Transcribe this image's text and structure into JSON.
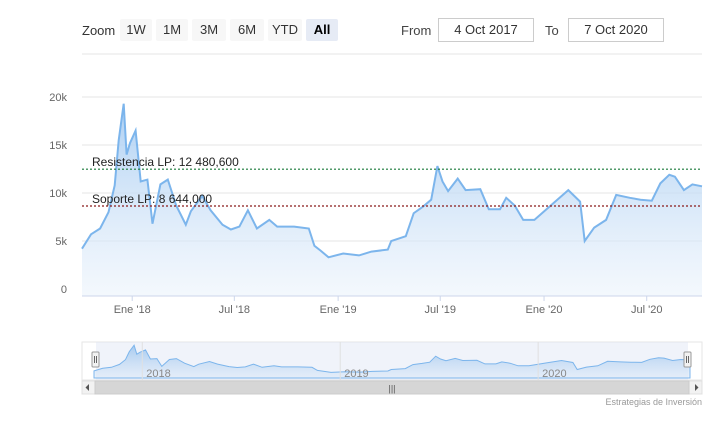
{
  "toolbar": {
    "zoom_label": "Zoom",
    "buttons": [
      "1W",
      "1M",
      "3M",
      "6M",
      "YTD",
      "All"
    ],
    "active": "All",
    "from_label": "From",
    "from_value": "4 Oct 2017",
    "to_label": "To",
    "to_value": "7 Oct 2020"
  },
  "chart_data": {
    "type": "area",
    "title": "",
    "xlabel": "",
    "ylabel": "",
    "x_range": [
      "2017-10-04",
      "2020-10-07"
    ],
    "ylim": [
      0,
      20000
    ],
    "y_ticks": [
      "0",
      "5k",
      "10k",
      "15k",
      "20k"
    ],
    "x_ticks": [
      {
        "label": "Ene '18",
        "date": "2018-01-01"
      },
      {
        "label": "Jul '18",
        "date": "2018-07-01"
      },
      {
        "label": "Ene '19",
        "date": "2019-01-01"
      },
      {
        "label": "Jul '19",
        "date": "2019-07-01"
      },
      {
        "label": "Ene '20",
        "date": "2020-01-01"
      },
      {
        "label": "Jul '20",
        "date": "2020-07-01"
      }
    ],
    "series": [
      {
        "points": [
          [
            "2017-10-04",
            4200
          ],
          [
            "2017-10-20",
            5700
          ],
          [
            "2017-11-05",
            6300
          ],
          [
            "2017-11-20",
            8000
          ],
          [
            "2017-12-01",
            10800
          ],
          [
            "2017-12-08",
            15500
          ],
          [
            "2017-12-17",
            19300
          ],
          [
            "2017-12-22",
            14000
          ],
          [
            "2017-12-28",
            15200
          ],
          [
            "2018-01-07",
            16500
          ],
          [
            "2018-01-16",
            11200
          ],
          [
            "2018-01-28",
            11400
          ],
          [
            "2018-02-06",
            6800
          ],
          [
            "2018-02-20",
            10900
          ],
          [
            "2018-03-05",
            11400
          ],
          [
            "2018-03-20",
            8700
          ],
          [
            "2018-04-06",
            6700
          ],
          [
            "2018-04-15",
            8100
          ],
          [
            "2018-05-05",
            9700
          ],
          [
            "2018-05-20",
            8200
          ],
          [
            "2018-06-10",
            6700
          ],
          [
            "2018-06-25",
            6200
          ],
          [
            "2018-07-10",
            6500
          ],
          [
            "2018-07-25",
            8200
          ],
          [
            "2018-08-10",
            6300
          ],
          [
            "2018-09-01",
            7200
          ],
          [
            "2018-09-15",
            6500
          ],
          [
            "2018-10-15",
            6500
          ],
          [
            "2018-11-10",
            6300
          ],
          [
            "2018-11-20",
            4500
          ],
          [
            "2018-12-01",
            4000
          ],
          [
            "2018-12-15",
            3300
          ],
          [
            "2019-01-10",
            3700
          ],
          [
            "2019-02-07",
            3500
          ],
          [
            "2019-03-01",
            3900
          ],
          [
            "2019-03-30",
            4100
          ],
          [
            "2019-04-05",
            5000
          ],
          [
            "2019-05-01",
            5500
          ],
          [
            "2019-05-15",
            7900
          ],
          [
            "2019-06-01",
            8600
          ],
          [
            "2019-06-15",
            9300
          ],
          [
            "2019-06-26",
            12800
          ],
          [
            "2019-07-05",
            11200
          ],
          [
            "2019-07-15",
            10200
          ],
          [
            "2019-08-01",
            11500
          ],
          [
            "2019-08-15",
            10300
          ],
          [
            "2019-09-10",
            10400
          ],
          [
            "2019-09-25",
            8300
          ],
          [
            "2019-10-15",
            8300
          ],
          [
            "2019-10-26",
            9500
          ],
          [
            "2019-11-10",
            8700
          ],
          [
            "2019-11-25",
            7200
          ],
          [
            "2019-12-15",
            7200
          ],
          [
            "2020-01-15",
            8800
          ],
          [
            "2020-02-13",
            10300
          ],
          [
            "2020-03-05",
            9100
          ],
          [
            "2020-03-13",
            5000
          ],
          [
            "2020-03-30",
            6400
          ],
          [
            "2020-04-20",
            7200
          ],
          [
            "2020-05-08",
            9800
          ],
          [
            "2020-06-01",
            9500
          ],
          [
            "2020-06-20",
            9300
          ],
          [
            "2020-07-10",
            9200
          ],
          [
            "2020-07-25",
            11000
          ],
          [
            "2020-08-10",
            11900
          ],
          [
            "2020-08-20",
            11700
          ],
          [
            "2020-09-05",
            10300
          ],
          [
            "2020-09-20",
            10900
          ],
          [
            "2020-10-07",
            10700
          ]
        ]
      }
    ],
    "annotations": [
      {
        "label": "Resistencia LP: 12 480,600",
        "value": 12480.6
      },
      {
        "label": "Soporte LP: 8 644,000",
        "value": 8644.0
      }
    ],
    "grid": true,
    "navigator": {
      "year_labels": [
        "2018",
        "2019",
        "2020"
      ],
      "scrollbar_grip": "|||"
    },
    "colors": {
      "line": "#7cb5ec",
      "fill_top": "#a9cdf2",
      "fill_bottom": "#e8f1fb",
      "resistance_line": "#1a7a3a",
      "support_line": "#8b1a1a"
    }
  },
  "credit": "Estrategias de Inversión"
}
